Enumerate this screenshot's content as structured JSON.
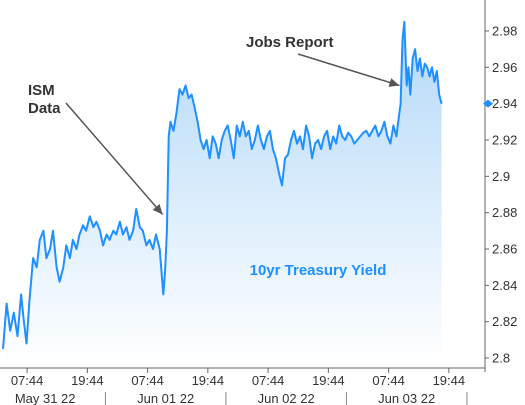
{
  "chart_data": {
    "type": "area",
    "title": "",
    "xlabel": "",
    "ylabel": "",
    "series_label": "10yr Treasury Yield",
    "ylim": [
      2.8,
      2.99
    ],
    "yticks": [
      "2.8",
      "2.82",
      "2.84",
      "2.86",
      "2.88",
      "2.9",
      "2.92",
      "2.94",
      "2.96",
      "2.98"
    ],
    "xlim": [
      0,
      80
    ],
    "xticks": [
      {
        "x": 4,
        "label": "07:44"
      },
      {
        "x": 14,
        "label": "19:44"
      },
      {
        "x": 24,
        "label": "07:44"
      },
      {
        "x": 34,
        "label": "19:44"
      },
      {
        "x": 44,
        "label": "07:44"
      },
      {
        "x": 54,
        "label": "19:44"
      },
      {
        "x": 64,
        "label": "07:44"
      },
      {
        "x": 74,
        "label": "19:44"
      }
    ],
    "date_labels": [
      {
        "x": 7,
        "label": "May 31 22"
      },
      {
        "x": 27,
        "label": "Jun 01 22"
      },
      {
        "x": 47,
        "label": "Jun 02 22"
      },
      {
        "x": 67,
        "label": "Jun 03 22"
      }
    ],
    "last_value": 2.94,
    "annotations": [
      {
        "label_lines": [
          "ISM",
          "Data"
        ],
        "target": {
          "x": 26.5,
          "y": 2.879
        }
      },
      {
        "label_lines": [
          "Jobs Report"
        ],
        "target": {
          "x": 65.8,
          "y": 2.95
        }
      }
    ],
    "points": [
      [
        0.0,
        2.805
      ],
      [
        0.6,
        2.83
      ],
      [
        1.2,
        2.815
      ],
      [
        1.8,
        2.825
      ],
      [
        2.4,
        2.812
      ],
      [
        3.0,
        2.835
      ],
      [
        3.4,
        2.822
      ],
      [
        3.9,
        2.808
      ],
      [
        4.4,
        2.832
      ],
      [
        5.0,
        2.855
      ],
      [
        5.6,
        2.85
      ],
      [
        6.1,
        2.865
      ],
      [
        6.7,
        2.87
      ],
      [
        7.2,
        2.855
      ],
      [
        7.8,
        2.86
      ],
      [
        8.3,
        2.87
      ],
      [
        8.9,
        2.85
      ],
      [
        9.4,
        2.842
      ],
      [
        10.0,
        2.85
      ],
      [
        10.5,
        2.862
      ],
      [
        11.1,
        2.855
      ],
      [
        11.6,
        2.865
      ],
      [
        12.2,
        2.86
      ],
      [
        12.7,
        2.868
      ],
      [
        13.3,
        2.873
      ],
      [
        13.8,
        2.87
      ],
      [
        14.4,
        2.878
      ],
      [
        15.0,
        2.872
      ],
      [
        15.5,
        2.875
      ],
      [
        16.1,
        2.87
      ],
      [
        16.6,
        2.862
      ],
      [
        17.2,
        2.868
      ],
      [
        17.7,
        2.865
      ],
      [
        18.3,
        2.87
      ],
      [
        18.8,
        2.868
      ],
      [
        19.4,
        2.875
      ],
      [
        19.9,
        2.868
      ],
      [
        20.5,
        2.872
      ],
      [
        21.0,
        2.865
      ],
      [
        21.6,
        2.87
      ],
      [
        22.1,
        2.882
      ],
      [
        22.7,
        2.872
      ],
      [
        23.2,
        2.87
      ],
      [
        23.8,
        2.862
      ],
      [
        24.3,
        2.865
      ],
      [
        24.9,
        2.86
      ],
      [
        25.4,
        2.868
      ],
      [
        26.0,
        2.86
      ],
      [
        26.6,
        2.835
      ],
      [
        26.9,
        2.848
      ],
      [
        27.2,
        2.87
      ],
      [
        27.5,
        2.922
      ],
      [
        27.8,
        2.93
      ],
      [
        28.3,
        2.925
      ],
      [
        28.8,
        2.935
      ],
      [
        29.3,
        2.948
      ],
      [
        29.8,
        2.945
      ],
      [
        30.3,
        2.95
      ],
      [
        30.8,
        2.943
      ],
      [
        31.3,
        2.945
      ],
      [
        31.8,
        2.938
      ],
      [
        32.3,
        2.93
      ],
      [
        32.8,
        2.92
      ],
      [
        33.3,
        2.915
      ],
      [
        33.8,
        2.92
      ],
      [
        34.3,
        2.91
      ],
      [
        34.8,
        2.922
      ],
      [
        35.3,
        2.918
      ],
      [
        35.8,
        2.91
      ],
      [
        36.3,
        2.92
      ],
      [
        36.8,
        2.925
      ],
      [
        37.3,
        2.928
      ],
      [
        37.8,
        2.92
      ],
      [
        38.3,
        2.91
      ],
      [
        38.8,
        2.928
      ],
      [
        39.3,
        2.922
      ],
      [
        39.8,
        2.93
      ],
      [
        40.3,
        2.922
      ],
      [
        40.8,
        2.925
      ],
      [
        41.3,
        2.915
      ],
      [
        41.8,
        2.92
      ],
      [
        42.3,
        2.928
      ],
      [
        42.8,
        2.92
      ],
      [
        43.3,
        2.915
      ],
      [
        43.8,
        2.922
      ],
      [
        44.3,
        2.925
      ],
      [
        44.8,
        2.915
      ],
      [
        45.3,
        2.91
      ],
      [
        45.8,
        2.902
      ],
      [
        46.3,
        2.895
      ],
      [
        46.8,
        2.91
      ],
      [
        47.3,
        2.912
      ],
      [
        47.8,
        2.92
      ],
      [
        48.3,
        2.925
      ],
      [
        48.8,
        2.918
      ],
      [
        49.3,
        2.922
      ],
      [
        49.8,
        2.915
      ],
      [
        50.3,
        2.928
      ],
      [
        50.8,
        2.922
      ],
      [
        51.3,
        2.91
      ],
      [
        51.8,
        2.918
      ],
      [
        52.3,
        2.92
      ],
      [
        52.8,
        2.915
      ],
      [
        53.3,
        2.922
      ],
      [
        53.8,
        2.925
      ],
      [
        54.3,
        2.915
      ],
      [
        54.8,
        2.922
      ],
      [
        55.3,
        2.918
      ],
      [
        55.8,
        2.928
      ],
      [
        56.3,
        2.922
      ],
      [
        56.8,
        2.92
      ],
      [
        57.3,
        2.924
      ],
      [
        57.8,
        2.922
      ],
      [
        58.3,
        2.918
      ],
      [
        58.8,
        2.92
      ],
      [
        59.3,
        2.922
      ],
      [
        59.8,
        2.924
      ],
      [
        60.3,
        2.925
      ],
      [
        60.8,
        2.922
      ],
      [
        61.3,
        2.925
      ],
      [
        61.8,
        2.928
      ],
      [
        62.3,
        2.922
      ],
      [
        62.8,
        2.925
      ],
      [
        63.3,
        2.93
      ],
      [
        63.8,
        2.922
      ],
      [
        64.3,
        2.918
      ],
      [
        64.8,
        2.928
      ],
      [
        65.3,
        2.922
      ],
      [
        65.6,
        2.93
      ],
      [
        66.0,
        2.94
      ],
      [
        66.3,
        2.975
      ],
      [
        66.6,
        2.985
      ],
      [
        67.0,
        2.95
      ],
      [
        67.3,
        2.96
      ],
      [
        67.6,
        2.945
      ],
      [
        68.0,
        2.965
      ],
      [
        68.4,
        2.97
      ],
      [
        68.8,
        2.958
      ],
      [
        69.2,
        2.965
      ],
      [
        69.6,
        2.955
      ],
      [
        70.0,
        2.962
      ],
      [
        70.4,
        2.96
      ],
      [
        70.8,
        2.955
      ],
      [
        71.2,
        2.96
      ],
      [
        71.6,
        2.952
      ],
      [
        72.0,
        2.958
      ],
      [
        72.4,
        2.945
      ],
      [
        72.8,
        2.94
      ]
    ]
  }
}
